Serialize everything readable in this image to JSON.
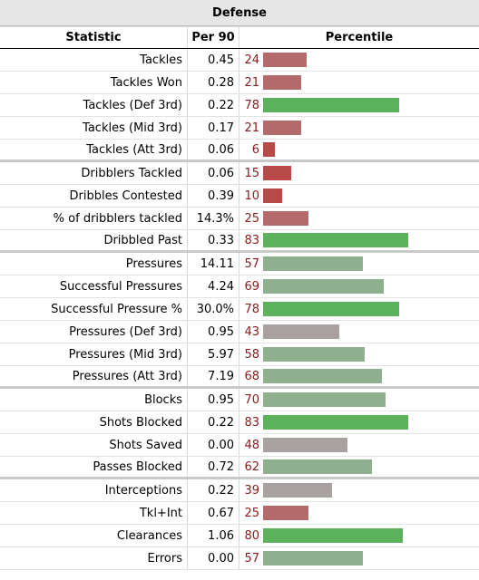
{
  "table": {
    "title": "Defense",
    "headers": {
      "statistic": "Statistic",
      "per90": "Per 90",
      "percentile": "Percentile"
    },
    "groups": [
      [
        {
          "stat": "Tackles",
          "per90": "0.45",
          "pct": 24
        },
        {
          "stat": "Tackles Won",
          "per90": "0.28",
          "pct": 21
        },
        {
          "stat": "Tackles (Def 3rd)",
          "per90": "0.22",
          "pct": 78
        },
        {
          "stat": "Tackles (Mid 3rd)",
          "per90": "0.17",
          "pct": 21
        },
        {
          "stat": "Tackles (Att 3rd)",
          "per90": "0.06",
          "pct": 6
        }
      ],
      [
        {
          "stat": "Dribblers Tackled",
          "per90": "0.06",
          "pct": 15
        },
        {
          "stat": "Dribbles Contested",
          "per90": "0.39",
          "pct": 10
        },
        {
          "stat": "% of dribblers tackled",
          "per90": "14.3%",
          "pct": 25
        },
        {
          "stat": "Dribbled Past",
          "per90": "0.33",
          "pct": 83
        }
      ],
      [
        {
          "stat": "Pressures",
          "per90": "14.11",
          "pct": 57
        },
        {
          "stat": "Successful Pressures",
          "per90": "4.24",
          "pct": 69
        },
        {
          "stat": "Successful Pressure %",
          "per90": "30.0%",
          "pct": 78
        },
        {
          "stat": "Pressures (Def 3rd)",
          "per90": "0.95",
          "pct": 43
        },
        {
          "stat": "Pressures (Mid 3rd)",
          "per90": "5.97",
          "pct": 58
        },
        {
          "stat": "Pressures (Att 3rd)",
          "per90": "7.19",
          "pct": 68
        }
      ],
      [
        {
          "stat": "Blocks",
          "per90": "0.95",
          "pct": 70
        },
        {
          "stat": "Shots Blocked",
          "per90": "0.22",
          "pct": 83
        },
        {
          "stat": "Shots Saved",
          "per90": "0.00",
          "pct": 48
        },
        {
          "stat": "Passes Blocked",
          "per90": "0.72",
          "pct": 62
        }
      ],
      [
        {
          "stat": "Interceptions",
          "per90": "0.22",
          "pct": 39
        },
        {
          "stat": "Tkl+Int",
          "per90": "0.67",
          "pct": 25
        },
        {
          "stat": "Clearances",
          "per90": "1.06",
          "pct": 80
        },
        {
          "stat": "Errors",
          "per90": "0.00",
          "pct": 57
        }
      ]
    ]
  },
  "colors": {
    "low": "#b94a4a",
    "mid_low": "#b46a6a",
    "neutral": "#a9a0a0",
    "mid_high": "#8fb08f",
    "high": "#5cb25c"
  }
}
